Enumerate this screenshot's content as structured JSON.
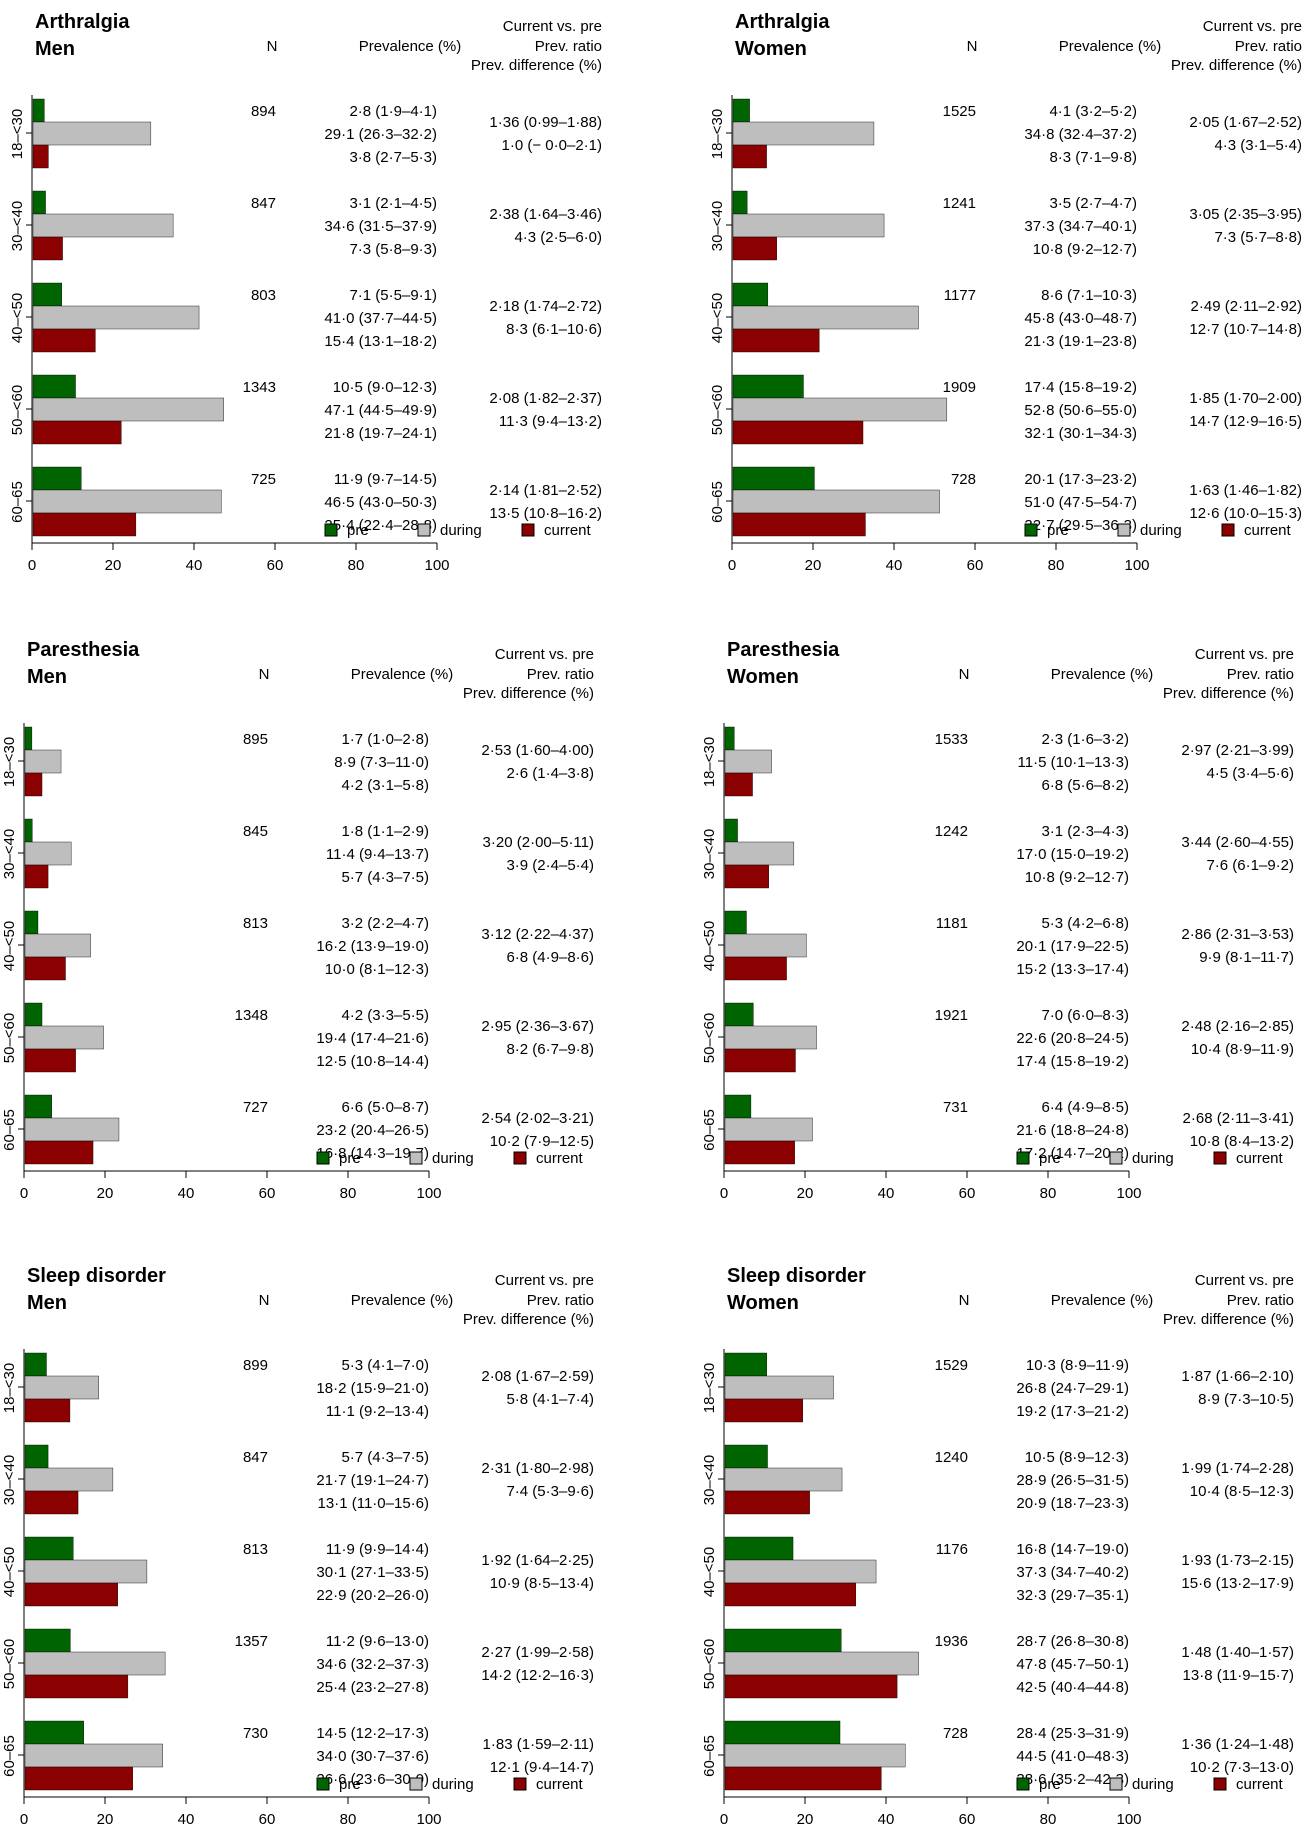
{
  "legend": {
    "pre": "pre",
    "during": "during",
    "current": "current"
  },
  "colors": {
    "pre": "#006400",
    "during": "#bebebe",
    "current": "#8b0000",
    "axis": "#000000"
  },
  "column_headers": {
    "n": "N",
    "prevalence": "Prevalence (%)",
    "comparison": "Current vs. pre",
    "ratio": "Prev. ratio",
    "difference": "Prev. difference (%)"
  },
  "chart_data": [
    {
      "type": "bar",
      "title": "Arthralgia",
      "subtitle": "Men",
      "categories": [
        "18–<30",
        "30–<40",
        "40–<50",
        "50–<60",
        "60–65"
      ],
      "n": [
        "894",
        "847",
        "803",
        "1343",
        "725"
      ],
      "xlim": [
        0,
        100
      ],
      "xticks": [
        "0",
        "20",
        "40",
        "60",
        "80",
        "100"
      ],
      "series": [
        {
          "name": "pre",
          "values": [
            2.8,
            3.1,
            7.1,
            10.5,
            11.9
          ],
          "labels": [
            "2·8 (1·9–4·1)",
            "3·1 (2·1–4·5)",
            "7·1 (5·5–9·1)",
            "10·5 (9·0–12·3)",
            "11·9 (9·7–14·5)"
          ]
        },
        {
          "name": "during",
          "values": [
            29.1,
            34.6,
            41.0,
            47.1,
            46.5
          ],
          "labels": [
            "29·1 (26·3–32·2)",
            "34·6 (31·5–37·9)",
            "41·0 (37·7–44·5)",
            "47·1 (44·5–49·9)",
            "46·5 (43·0–50·3)"
          ]
        },
        {
          "name": "current",
          "values": [
            3.8,
            7.3,
            15.4,
            21.8,
            25.4
          ],
          "labels": [
            "3·8 (2·7–5·3)",
            "7·3 (5·8–9·3)",
            "15·4 (13·1–18·2)",
            "21·8 (19·7–24·1)",
            "25·4 (22·4–28·8)"
          ]
        }
      ],
      "ratio": [
        "1·36 (0·99–1·88)",
        "2·38 (1·64–3·46)",
        "2·18 (1·74–2·72)",
        "2·08 (1·82–2·37)",
        "2·14 (1·81–2·52)"
      ],
      "difference": [
        "1·0 (− 0·0–2·1)",
        "4·3 (2·5–6·0)",
        "8·3 (6·1–10·6)",
        "11·3 (9·4–13·2)",
        "13·5 (10·8–16·2)"
      ]
    },
    {
      "type": "bar",
      "title": "Arthralgia",
      "subtitle": "Women",
      "categories": [
        "18–<30",
        "30–<40",
        "40–<50",
        "50–<60",
        "60–65"
      ],
      "n": [
        "1525",
        "1241",
        "1177",
        "1909",
        "728"
      ],
      "xlim": [
        0,
        100
      ],
      "xticks": [
        "0",
        "20",
        "40",
        "60",
        "80",
        "100"
      ],
      "series": [
        {
          "name": "pre",
          "values": [
            4.1,
            3.5,
            8.6,
            17.4,
            20.1
          ],
          "labels": [
            "4·1 (3·2–5·2)",
            "3·5 (2·7–4·7)",
            "8·6 (7·1–10·3)",
            "17·4 (15·8–19·2)",
            "20·1 (17·3–23·2)"
          ]
        },
        {
          "name": "during",
          "values": [
            34.8,
            37.3,
            45.8,
            52.8,
            51.0
          ],
          "labels": [
            "34·8 (32·4–37·2)",
            "37·3 (34·7–40·1)",
            "45·8 (43·0–48·7)",
            "52·8 (50·6–55·0)",
            "51·0 (47·5–54·7)"
          ]
        },
        {
          "name": "current",
          "values": [
            8.3,
            10.8,
            21.3,
            32.1,
            32.7
          ],
          "labels": [
            "8·3 (7·1–9·8)",
            "10·8 (9·2–12·7)",
            "21·3 (19·1–23·8)",
            "32·1 (30·1–34·3)",
            "32·7 (29·5–36·3)"
          ]
        }
      ],
      "ratio": [
        "2·05 (1·67–2·52)",
        "3·05 (2·35–3·95)",
        "2·49 (2·11–2·92)",
        "1·85 (1·70–2·00)",
        "1·63 (1·46–1·82)"
      ],
      "difference": [
        "4·3 (3·1–5·4)",
        "7·3 (5·7–8·8)",
        "12·7 (10·7–14·8)",
        "14·7 (12·9–16·5)",
        "12·6 (10·0–15·3)"
      ]
    },
    {
      "type": "bar",
      "title": "Paresthesia",
      "subtitle": "Men",
      "categories": [
        "18–<30",
        "30–<40",
        "40–<50",
        "50–<60",
        "60–65"
      ],
      "n": [
        "895",
        "845",
        "813",
        "1348",
        "727"
      ],
      "xlim": [
        0,
        100
      ],
      "xticks": [
        "0",
        "20",
        "40",
        "60",
        "80",
        "100"
      ],
      "series": [
        {
          "name": "pre",
          "values": [
            1.7,
            1.8,
            3.2,
            4.2,
            6.6
          ],
          "labels": [
            "1·7 (1·0–2·8)",
            "1·8 (1·1–2·9)",
            "3·2 (2·2–4·7)",
            "4·2 (3·3–5·5)",
            "6·6 (5·0–8·7)"
          ]
        },
        {
          "name": "during",
          "values": [
            8.9,
            11.4,
            16.2,
            19.4,
            23.2
          ],
          "labels": [
            "8·9 (7·3–11·0)",
            "11·4 (9·4–13·7)",
            "16·2 (13·9–19·0)",
            "19·4 (17·4–21·6)",
            "23·2 (20·4–26·5)"
          ]
        },
        {
          "name": "current",
          "values": [
            4.2,
            5.7,
            10.0,
            12.5,
            16.8
          ],
          "labels": [
            "4·2 (3·1–5·8)",
            "5·7 (4·3–7·5)",
            "10·0 (8·1–12·3)",
            "12·5 (10·8–14·4)",
            "16·8 (14·3–19·7)"
          ]
        }
      ],
      "ratio": [
        "2·53 (1·60–4·00)",
        "3·20 (2·00–5·11)",
        "3·12 (2·22–4·37)",
        "2·95 (2·36–3·67)",
        "2·54 (2·02–3·21)"
      ],
      "difference": [
        "2·6 (1·4–3·8)",
        "3·9 (2·4–5·4)",
        "6·8 (4·9–8·6)",
        "8·2 (6·7–9·8)",
        "10·2 (7·9–12·5)"
      ]
    },
    {
      "type": "bar",
      "title": "Paresthesia",
      "subtitle": "Women",
      "categories": [
        "18–<30",
        "30–<40",
        "40–<50",
        "50–<60",
        "60–65"
      ],
      "n": [
        "1533",
        "1242",
        "1181",
        "1921",
        "731"
      ],
      "xlim": [
        0,
        100
      ],
      "xticks": [
        "0",
        "20",
        "40",
        "60",
        "80",
        "100"
      ],
      "series": [
        {
          "name": "pre",
          "values": [
            2.3,
            3.1,
            5.3,
            7.0,
            6.4
          ],
          "labels": [
            "2·3 (1·6–3·2)",
            "3·1 (2·3–4·3)",
            "5·3 (4·2–6·8)",
            "7·0 (6·0–8·3)",
            "6·4 (4·9–8·5)"
          ]
        },
        {
          "name": "during",
          "values": [
            11.5,
            17.0,
            20.1,
            22.6,
            21.6
          ],
          "labels": [
            "11·5 (10·1–13·3)",
            "17·0 (15·0–19·2)",
            "20·1 (17·9–22·5)",
            "22·6 (20·8–24·5)",
            "21·6 (18·8–24·8)"
          ]
        },
        {
          "name": "current",
          "values": [
            6.8,
            10.8,
            15.2,
            17.4,
            17.2
          ],
          "labels": [
            "6·8 (5·6–8·2)",
            "10·8 (9·2–12·7)",
            "15·2 (13·3–17·4)",
            "17·4 (15·8–19·2)",
            "17·2 (14·7–20·2)"
          ]
        }
      ],
      "ratio": [
        "2·97 (2·21–3·99)",
        "3·44 (2·60–4·55)",
        "2·86 (2·31–3·53)",
        "2·48 (2·16–2·85)",
        "2·68 (2·11–3·41)"
      ],
      "difference": [
        "4·5 (3·4–5·6)",
        "7·6 (6·1–9·2)",
        "9·9 (8·1–11·7)",
        "10·4 (8·9–11·9)",
        "10·8 (8·4–13·2)"
      ]
    },
    {
      "type": "bar",
      "title": "Sleep disorder",
      "subtitle": "Men",
      "categories": [
        "18–<30",
        "30–<40",
        "40–<50",
        "50–<60",
        "60–65"
      ],
      "n": [
        "899",
        "847",
        "813",
        "1357",
        "730"
      ],
      "xlim": [
        0,
        100
      ],
      "xticks": [
        "0",
        "20",
        "40",
        "60",
        "80",
        "100"
      ],
      "series": [
        {
          "name": "pre",
          "values": [
            5.3,
            5.7,
            11.9,
            11.2,
            14.5
          ],
          "labels": [
            "5·3 (4·1–7·0)",
            "5·7 (4·3–7·5)",
            "11·9 (9·9–14·4)",
            "11·2 (9·6–13·0)",
            "14·5 (12·2–17·3)"
          ]
        },
        {
          "name": "during",
          "values": [
            18.2,
            21.7,
            30.1,
            34.6,
            34.0
          ],
          "labels": [
            "18·2 (15·9–21·0)",
            "21·7 (19·1–24·7)",
            "30·1 (27·1–33·5)",
            "34·6 (32·2–37·3)",
            "34·0 (30·7–37·6)"
          ]
        },
        {
          "name": "current",
          "values": [
            11.1,
            13.1,
            22.9,
            25.4,
            26.6
          ],
          "labels": [
            "11·1 (9·2–13·4)",
            "13·1 (11·0–15·6)",
            "22·9 (20·2–26·0)",
            "25·4 (23·2–27·8)",
            "26·6 (23·6–30·0)"
          ]
        }
      ],
      "ratio": [
        "2·08 (1·67–2·59)",
        "2·31 (1·80–2·98)",
        "1·92 (1·64–2·25)",
        "2·27 (1·99–2·58)",
        "1·83 (1·59–2·11)"
      ],
      "difference": [
        "5·8 (4·1–7·4)",
        "7·4 (5·3–9·6)",
        "10·9 (8·5–13·4)",
        "14·2 (12·2–16·3)",
        "12·1 (9·4–14·7)"
      ]
    },
    {
      "type": "bar",
      "title": "Sleep disorder",
      "subtitle": "Women",
      "categories": [
        "18–<30",
        "30–<40",
        "40–<50",
        "50–<60",
        "60–65"
      ],
      "n": [
        "1529",
        "1240",
        "1176",
        "1936",
        "728"
      ],
      "xlim": [
        0,
        100
      ],
      "xticks": [
        "0",
        "20",
        "40",
        "60",
        "80",
        "100"
      ],
      "series": [
        {
          "name": "pre",
          "values": [
            10.3,
            10.5,
            16.8,
            28.7,
            28.4
          ],
          "labels": [
            "10·3 (8·9–11·9)",
            "10·5 (8·9–12·3)",
            "16·8 (14·7–19·0)",
            "28·7 (26·8–30·8)",
            "28·4 (25·3–31·9)"
          ]
        },
        {
          "name": "during",
          "values": [
            26.8,
            28.9,
            37.3,
            47.8,
            44.5
          ],
          "labels": [
            "26·8 (24·7–29·1)",
            "28·9 (26·5–31·5)",
            "37·3 (34·7–40·2)",
            "47·8 (45·7–50·1)",
            "44·5 (41·0–48·3)"
          ]
        },
        {
          "name": "current",
          "values": [
            19.2,
            20.9,
            32.3,
            42.5,
            38.6
          ],
          "labels": [
            "19·2 (17·3–21·2)",
            "20·9 (18·7–23·3)",
            "32·3 (29·7–35·1)",
            "42·5 (40·4–44·8)",
            "38·6 (35·2–42·3)"
          ]
        }
      ],
      "ratio": [
        "1·87 (1·66–2·10)",
        "1·99 (1·74–2·28)",
        "1·93 (1·73–2·15)",
        "1·48 (1·40–1·57)",
        "1·36 (1·24–1·48)"
      ],
      "difference": [
        "8·9 (7·3–10·5)",
        "10·4 (8·5–12·3)",
        "15·6 (13·2–17·9)",
        "13·8 (11·9–15·7)",
        "10·2 (7·3–13·0)"
      ]
    }
  ]
}
